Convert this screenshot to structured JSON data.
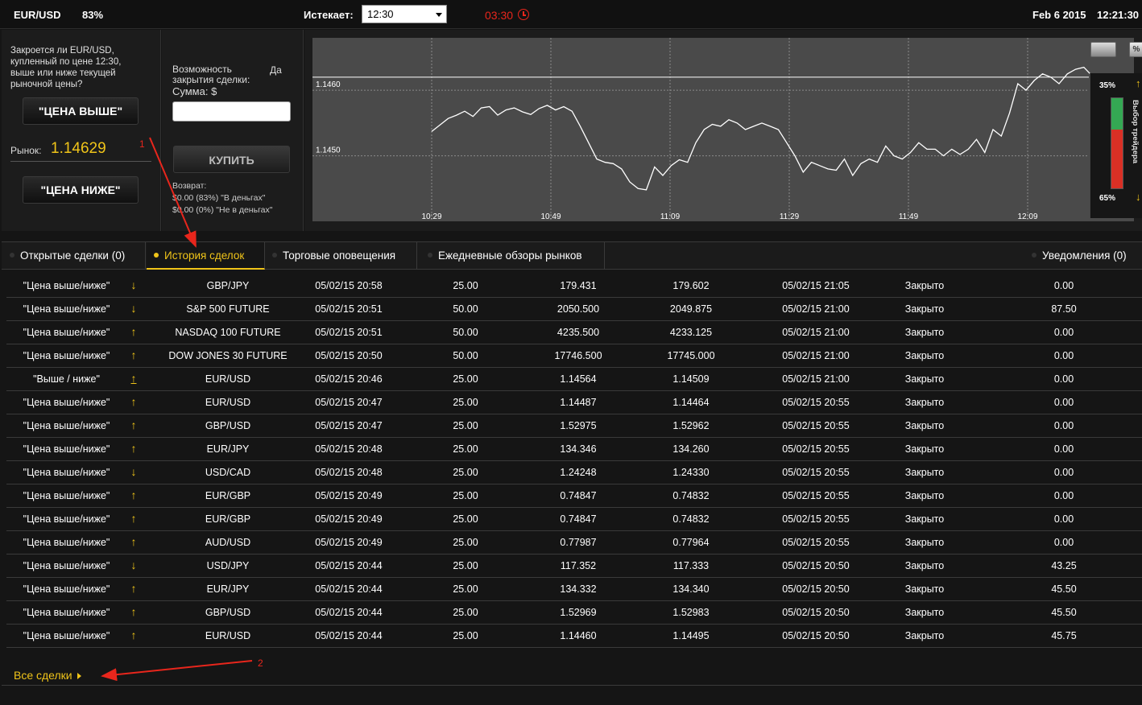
{
  "header": {
    "asset": "EUR/USD",
    "payout": "83%",
    "expires_label": "Истекает:",
    "expiry_value": "12:30",
    "countdown": "03:30",
    "date": "Feb 6 2015",
    "time": "12:21:30"
  },
  "trade_panel": {
    "question": "Закроется ли EUR/USD, купленный по цене 12:30, выше или ниже текущей рыночной цены?",
    "higher_button": "\"ЦЕНА ВЫШЕ\"",
    "lower_button": "\"ЦЕНА НИЖЕ\"",
    "market_label": "Рынок:",
    "market_value": "1.14629"
  },
  "order_panel": {
    "close_option_label": "Возможность закрытия сделки:",
    "close_option_value": "Да",
    "amount_label": "Сумма:  $",
    "amount_value": "",
    "buy_button": "КУПИТЬ",
    "return_label": "Возврат:",
    "return_in_money": "$0.00 (83%) \"В деньгах\"",
    "return_out_money": "$0.00 (0%) \"Не в деньгах\""
  },
  "chart": {
    "percent_button": "%",
    "sentiment_label": "Выбор трейдера",
    "sentiment_up": "35%",
    "sentiment_down": "65%",
    "sentiment_up_fraction": 0.35,
    "current_level": 1.1462
  },
  "chart_data": {
    "type": "line",
    "title": "",
    "xlabel": "",
    "ylabel": "",
    "x_ticks": [
      "10:29",
      "10:49",
      "11:09",
      "11:29",
      "11:49",
      "12:09"
    ],
    "y_ticks": [
      "1.1450",
      "1.1460"
    ],
    "ylim": [
      1.144,
      1.1468
    ],
    "grid": true,
    "series": [
      {
        "values": [
          1.14537,
          1.14547,
          1.14557,
          1.14562,
          1.14568,
          1.1456,
          1.14573,
          1.14575,
          1.14562,
          1.1457,
          1.14573,
          1.14567,
          1.14563,
          1.14572,
          1.14577,
          1.1457,
          1.14575,
          1.14568,
          1.14545,
          1.1452,
          1.14495,
          1.1449,
          1.14488,
          1.1448,
          1.1446,
          1.1445,
          1.14448,
          1.14483,
          1.1447,
          1.14485,
          1.14494,
          1.1449,
          1.1452,
          1.1454,
          1.14548,
          1.14545,
          1.14555,
          1.1455,
          1.1454,
          1.14545,
          1.1455,
          1.14545,
          1.1454,
          1.1452,
          1.145,
          1.14475,
          1.1449,
          1.14485,
          1.1448,
          1.14478,
          1.14495,
          1.1447,
          1.14488,
          1.14495,
          1.1449,
          1.14515,
          1.145,
          1.14495,
          1.14505,
          1.1452,
          1.1451,
          1.1451,
          1.145,
          1.1451,
          1.14502,
          1.1451,
          1.14525,
          1.14505,
          1.1454,
          1.1453,
          1.14565,
          1.1461,
          1.146,
          1.14615,
          1.14625,
          1.1462,
          1.1461,
          1.14625,
          1.14632,
          1.14635,
          1.14622
        ]
      }
    ]
  },
  "tabs": [
    {
      "label": "Открытые сделки (0)"
    },
    {
      "label": "История сделок"
    },
    {
      "label": "Торговые оповещения"
    },
    {
      "label": "Ежедневные обзоры рынков"
    },
    {
      "label": "Уведомления (0)"
    }
  ],
  "history": {
    "rows": [
      {
        "type": "\"Цена выше/ниже\"",
        "dir": "↓",
        "asset": "GBP/JPY",
        "open_time": "05/02/15 20:58",
        "amount": "25.00",
        "open_price": "179.431",
        "close_price": "179.602",
        "close_time": "05/02/15 21:05",
        "status": "Закрыто",
        "payout": "0.00"
      },
      {
        "type": "\"Цена выше/ниже\"",
        "dir": "↓",
        "asset": "S&P 500 FUTURE",
        "open_time": "05/02/15 20:51",
        "amount": "50.00",
        "open_price": "2050.500",
        "close_price": "2049.875",
        "close_time": "05/02/15 21:00",
        "status": "Закрыто",
        "payout": "87.50"
      },
      {
        "type": "\"Цена выше/ниже\"",
        "dir": "↑",
        "asset": "NASDAQ 100 FUTURE",
        "open_time": "05/02/15 20:51",
        "amount": "50.00",
        "open_price": "4235.500",
        "close_price": "4233.125",
        "close_time": "05/02/15 21:00",
        "status": "Закрыто",
        "payout": "0.00"
      },
      {
        "type": "\"Цена выше/ниже\"",
        "dir": "↑",
        "asset": "DOW JONES 30 FUTURE",
        "open_time": "05/02/15 20:50",
        "amount": "50.00",
        "open_price": "17746.500",
        "close_price": "17745.000",
        "close_time": "05/02/15 21:00",
        "status": "Закрыто",
        "payout": "0.00"
      },
      {
        "type": "\"Выше / ниже\"",
        "dir": "↑",
        "asset": "EUR/USD",
        "open_time": "05/02/15 20:46",
        "amount": "25.00",
        "open_price": "1.14564",
        "close_price": "1.14509",
        "close_time": "05/02/15 21:00",
        "status": "Закрыто",
        "payout": "0.00"
      },
      {
        "type": "\"Цена выше/ниже\"",
        "dir": "↑",
        "asset": "EUR/USD",
        "open_time": "05/02/15 20:47",
        "amount": "25.00",
        "open_price": "1.14487",
        "close_price": "1.14464",
        "close_time": "05/02/15 20:55",
        "status": "Закрыто",
        "payout": "0.00"
      },
      {
        "type": "\"Цена выше/ниже\"",
        "dir": "↑",
        "asset": "GBP/USD",
        "open_time": "05/02/15 20:47",
        "amount": "25.00",
        "open_price": "1.52975",
        "close_price": "1.52962",
        "close_time": "05/02/15 20:55",
        "status": "Закрыто",
        "payout": "0.00"
      },
      {
        "type": "\"Цена выше/ниже\"",
        "dir": "↑",
        "asset": "EUR/JPY",
        "open_time": "05/02/15 20:48",
        "amount": "25.00",
        "open_price": "134.346",
        "close_price": "134.260",
        "close_time": "05/02/15 20:55",
        "status": "Закрыто",
        "payout": "0.00"
      },
      {
        "type": "\"Цена выше/ниже\"",
        "dir": "↓",
        "asset": "USD/CAD",
        "open_time": "05/02/15 20:48",
        "amount": "25.00",
        "open_price": "1.24248",
        "close_price": "1.24330",
        "close_time": "05/02/15 20:55",
        "status": "Закрыто",
        "payout": "0.00"
      },
      {
        "type": "\"Цена выше/ниже\"",
        "dir": "↑",
        "asset": "EUR/GBP",
        "open_time": "05/02/15 20:49",
        "amount": "25.00",
        "open_price": "0.74847",
        "close_price": "0.74832",
        "close_time": "05/02/15 20:55",
        "status": "Закрыто",
        "payout": "0.00"
      },
      {
        "type": "\"Цена выше/ниже\"",
        "dir": "↑",
        "asset": "EUR/GBP",
        "open_time": "05/02/15 20:49",
        "amount": "25.00",
        "open_price": "0.74847",
        "close_price": "0.74832",
        "close_time": "05/02/15 20:55",
        "status": "Закрыто",
        "payout": "0.00"
      },
      {
        "type": "\"Цена выше/ниже\"",
        "dir": "↑",
        "asset": "AUD/USD",
        "open_time": "05/02/15 20:49",
        "amount": "25.00",
        "open_price": "0.77987",
        "close_price": "0.77964",
        "close_time": "05/02/15 20:55",
        "status": "Закрыто",
        "payout": "0.00"
      },
      {
        "type": "\"Цена выше/ниже\"",
        "dir": "↓",
        "asset": "USD/JPY",
        "open_time": "05/02/15 20:44",
        "amount": "25.00",
        "open_price": "117.352",
        "close_price": "117.333",
        "close_time": "05/02/15 20:50",
        "status": "Закрыто",
        "payout": "43.25"
      },
      {
        "type": "\"Цена выше/ниже\"",
        "dir": "↑",
        "asset": "EUR/JPY",
        "open_time": "05/02/15 20:44",
        "amount": "25.00",
        "open_price": "134.332",
        "close_price": "134.340",
        "close_time": "05/02/15 20:50",
        "status": "Закрыто",
        "payout": "45.50"
      },
      {
        "type": "\"Цена выше/ниже\"",
        "dir": "↑",
        "asset": "GBP/USD",
        "open_time": "05/02/15 20:44",
        "amount": "25.00",
        "open_price": "1.52969",
        "close_price": "1.52983",
        "close_time": "05/02/15 20:50",
        "status": "Закрыто",
        "payout": "45.50"
      },
      {
        "type": "\"Цена выше/ниже\"",
        "dir": "↑",
        "asset": "EUR/USD",
        "open_time": "05/02/15 20:44",
        "amount": "25.00",
        "open_price": "1.14460",
        "close_price": "1.14495",
        "close_time": "05/02/15 20:50",
        "status": "Закрыто",
        "payout": "45.75"
      }
    ],
    "all_deals_link": "Все сделки"
  },
  "annotations": {
    "marker_1": "1",
    "marker_2": "2",
    "arrow_color": "#e8261c"
  },
  "colors": {
    "accent": "#f0c419",
    "alert": "#e8261c",
    "background": "#151515"
  }
}
